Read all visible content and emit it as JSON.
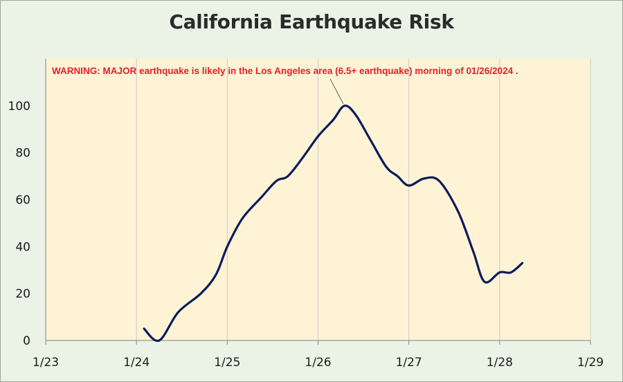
{
  "chart_data": {
    "type": "line",
    "title": "California Earthquake Risk",
    "xlabel": "",
    "ylabel": "",
    "x_ticks": [
      "1/23",
      "1/24",
      "1/25",
      "1/26",
      "1/27",
      "1/28",
      "1/29"
    ],
    "y_ticks": [
      0,
      20,
      40,
      60,
      80,
      100
    ],
    "xlim": [
      "1/23",
      "1/29"
    ],
    "ylim": [
      0,
      120
    ],
    "grid": true,
    "legend": "none",
    "colors": {
      "line": "#0b1b5c",
      "plot_background": "#fff3d6",
      "frame_background": "#eaf3e6",
      "grid": "#c9c9c9",
      "annotation": "#e0212b"
    },
    "series": [
      {
        "x": [
          "1/24 02:00",
          "1/24 06:00",
          "1/24 11:00",
          "1/24 17:00",
          "1/24 21:00",
          "1/25 00:00",
          "1/25 04:00",
          "1/25 09:00",
          "1/25 13:00",
          "1/25 16:00",
          "1/25 20:00",
          "1/26 00:00",
          "1/26 04:00",
          "1/26 07:00",
          "1/26 10:00",
          "1/26 14:00",
          "1/26 18:00",
          "1/26 21:00",
          "1/27 00:00",
          "1/27 04:00",
          "1/27 08:00",
          "1/27 13:00",
          "1/27 17:00",
          "1/27 20:00",
          "1/28 00:00",
          "1/28 03:00",
          "1/28 06:00"
        ],
        "values": [
          5,
          0,
          12,
          20,
          28,
          40,
          52,
          61,
          68,
          70,
          78,
          87,
          94,
          100,
          96,
          85,
          74,
          70,
          66,
          69,
          68,
          55,
          38,
          25,
          29,
          29,
          33
        ]
      }
    ],
    "annotations": [
      {
        "text": "WARNING: MAJOR earthquake is likely in the Los Angeles area (6.5+ earthquake) morning of 01/26/2024 .",
        "points_to": {
          "x": "1/26 07:00",
          "y": 100
        }
      }
    ]
  }
}
